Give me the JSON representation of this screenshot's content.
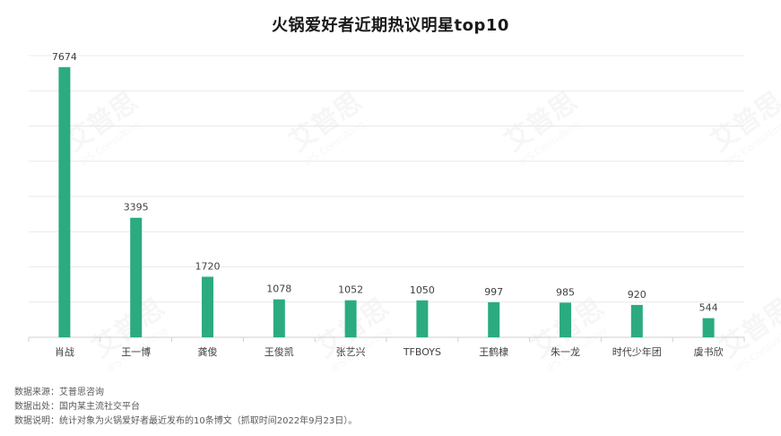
{
  "chart_data": {
    "type": "bar",
    "title": "火锅爱好者近期热议明星top10",
    "categories": [
      "肖战",
      "王一博",
      "龚俊",
      "王俊凯",
      "张艺兴",
      "TFBOYS",
      "王鹤棣",
      "朱一龙",
      "时代少年团",
      "虞书欣"
    ],
    "values": [
      7674,
      3395,
      1720,
      1078,
      1052,
      1050,
      997,
      985,
      920,
      544
    ],
    "ylim": [
      0,
      8000
    ],
    "grid": true,
    "legend": "none",
    "bar_color": "#2bab7f"
  },
  "watermark": {
    "brand": "艾普思",
    "subtitle": "IPS Consulting"
  },
  "footer": {
    "source": "数据来源：艾普思咨询",
    "origin": "数据出处：国内某主流社交平台",
    "note": "数据说明：统计对象为火锅爱好者最近发布的10条博文（抓取时间2022年9月23日）。"
  }
}
